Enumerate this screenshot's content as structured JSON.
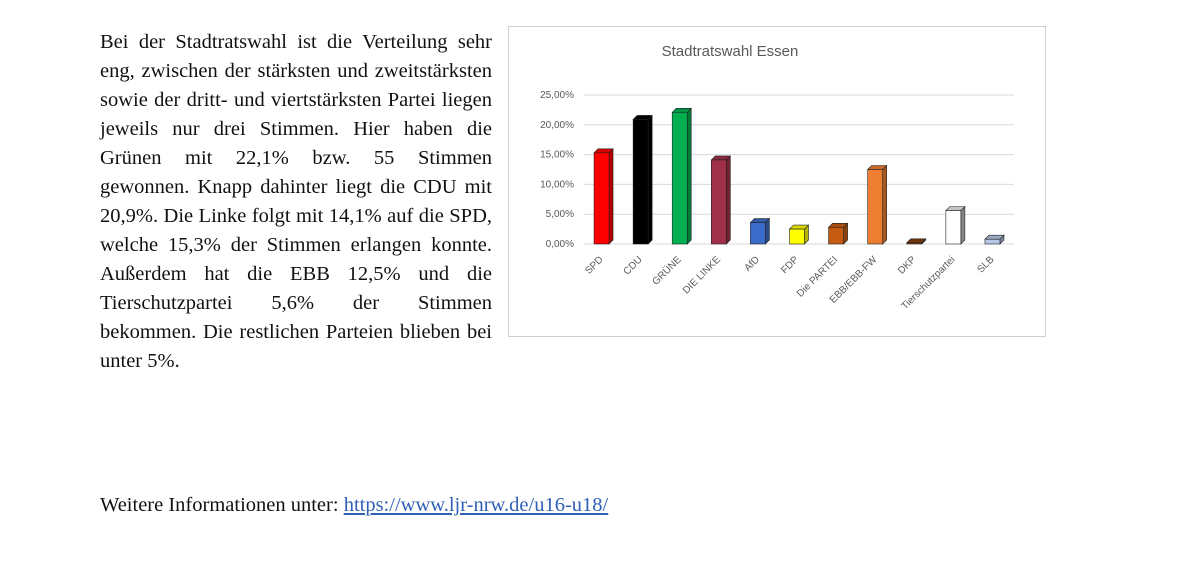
{
  "text": {
    "paragraph": "Bei der Stadtratswahl ist die Verteilung sehr eng, zwischen der stärksten und zweitstärksten sowie der dritt- und viert­stärksten Partei liegen jeweils nur drei Stimmen. Hier haben die Grünen mit 22,1% bzw. 55 Stimmen gewonnen. Knapp dahinter liegt die CDU mit 20,9%. Die Linke folgt mit 14,1% auf die SPD, welche 15,3% der Stimmen erlangen konnte. Außerdem hat die EBB 12,5% und die Tierschutzpartei 5,6% der Stimmen bekommen. Die restlichen Parteien blieben bei unter 5%."
  },
  "footer": {
    "label": "Weitere Informationen unter:",
    "link": "https://www.ljr-nrw.de/u16-u18/"
  },
  "chart_data": {
    "type": "bar",
    "title": "Stadtratswahl Essen",
    "xlabel": "",
    "ylabel": "",
    "categories": [
      "SPD",
      "CDU",
      "GRÜNE",
      "DIE LINKE",
      "AfD",
      "FDP",
      "Die PARTEI",
      "EBB/EBB-FW",
      "DKP",
      "Tierschutzpartei",
      "SLB"
    ],
    "values": [
      15.3,
      20.9,
      22.1,
      14.1,
      3.6,
      2.5,
      2.8,
      12.5,
      0.2,
      5.6,
      0.8
    ],
    "colors": [
      "#ff0000",
      "#000000",
      "#00b050",
      "#a0304a",
      "#3a6bc8",
      "#ffff00",
      "#c55a11",
      "#ed7d31",
      "#843c0c",
      "#ffffff",
      "#b4c7e7"
    ],
    "ylim": [
      0,
      25
    ],
    "yticks": [
      0,
      5,
      10,
      15,
      20,
      25
    ],
    "ytick_labels": [
      "0,00%",
      "5,00%",
      "10,00%",
      "15,00%",
      "20,00%",
      "25,00%"
    ],
    "grid": true,
    "legend": "none",
    "style": "3d-bar"
  }
}
